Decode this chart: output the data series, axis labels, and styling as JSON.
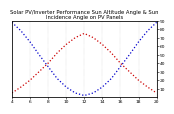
{
  "title": "Solar PV/Inverter Performance Sun Altitude Angle & Sun Incidence Angle on PV Panels",
  "bg_color": "#ffffff",
  "grid_color": "#888888",
  "ylim": [
    0,
    90
  ],
  "xlim": [
    4,
    20
  ],
  "x_ticks": [
    4,
    6,
    8,
    10,
    12,
    14,
    16,
    18,
    20
  ],
  "x_tick_labels": [
    "4",
    "6",
    "8",
    "10",
    "12",
    "14",
    "16",
    "18",
    "20"
  ],
  "y_ticks_right": [
    10,
    20,
    30,
    40,
    50,
    60,
    70,
    80,
    90
  ],
  "sun_altitude_color": "#0000cc",
  "sun_incidence_color": "#cc0000",
  "sun_altitude_x": [
    4,
    5,
    6,
    7,
    8,
    9,
    10,
    11,
    12,
    13,
    14,
    15,
    16,
    17,
    18,
    19,
    20
  ],
  "sun_altitude_y": [
    88,
    78,
    65,
    50,
    36,
    22,
    12,
    5,
    2,
    5,
    12,
    22,
    36,
    50,
    65,
    78,
    88
  ],
  "sun_incidence_x": [
    4,
    5,
    6,
    7,
    8,
    9,
    10,
    11,
    12,
    13,
    14,
    15,
    16,
    17,
    18,
    19,
    20
  ],
  "sun_incidence_y": [
    5,
    12,
    20,
    30,
    40,
    52,
    62,
    70,
    75,
    70,
    62,
    52,
    40,
    30,
    20,
    12,
    5
  ],
  "title_fontsize": 3.8,
  "tick_fontsize": 3.2,
  "dot_size": 1.2,
  "linewidth": 0.9
}
